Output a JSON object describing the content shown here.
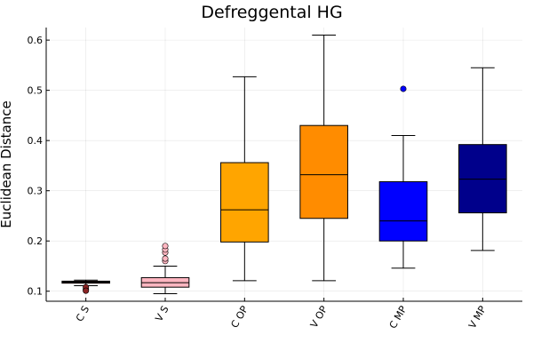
{
  "chart_data": {
    "type": "box",
    "title": "Defreggental HG",
    "xlabel": "",
    "ylabel": "Euclidean Distance",
    "ylim": [
      0.08,
      0.625
    ],
    "yticks": [
      0.1,
      0.2,
      0.3,
      0.4,
      0.5,
      0.6
    ],
    "ytick_labels": [
      "0.1",
      "0.2",
      "0.3",
      "0.4",
      "0.5",
      "0.6"
    ],
    "grid": true,
    "legend": "none",
    "categories": [
      "C S",
      "V S",
      "C OP",
      "V OP",
      "C MP",
      "V MP"
    ],
    "boxes": [
      {
        "category": "C S",
        "min": 0.111,
        "q1": 0.116,
        "median": 0.118,
        "q3": 0.12,
        "max": 0.122,
        "outliers": [
          0.104,
          0.108,
          0.101
        ],
        "color": "#8B2323"
      },
      {
        "category": "V S",
        "min": 0.095,
        "q1": 0.108,
        "median": 0.117,
        "q3": 0.127,
        "max": 0.15,
        "outliers": [
          0.16,
          0.165,
          0.177,
          0.183,
          0.19
        ],
        "color": "#FFB6C1"
      },
      {
        "category": "C OP",
        "min": 0.121,
        "q1": 0.198,
        "median": 0.262,
        "q3": 0.356,
        "max": 0.527,
        "outliers": [],
        "color": "#FFA500"
      },
      {
        "category": "V OP",
        "min": 0.121,
        "q1": 0.245,
        "median": 0.332,
        "q3": 0.43,
        "max": 0.61,
        "outliers": [],
        "color": "#FF8C00"
      },
      {
        "category": "C MP",
        "min": 0.146,
        "q1": 0.2,
        "median": 0.24,
        "q3": 0.318,
        "max": 0.41,
        "outliers": [
          0.503
        ],
        "color": "#0000FF"
      },
      {
        "category": "V MP",
        "min": 0.181,
        "q1": 0.256,
        "median": 0.323,
        "q3": 0.392,
        "max": 0.545,
        "outliers": [],
        "color": "#00008B"
      }
    ]
  }
}
